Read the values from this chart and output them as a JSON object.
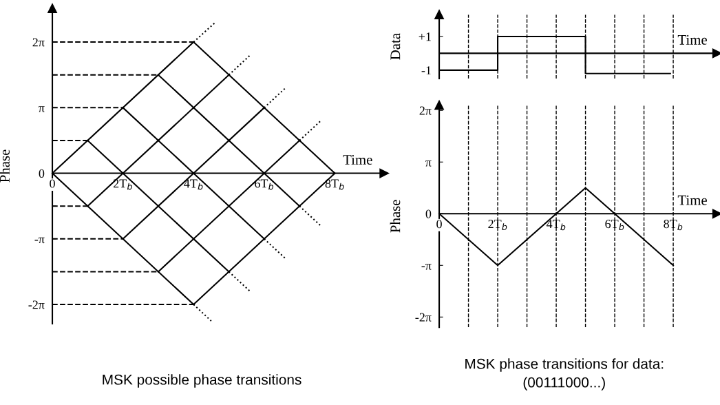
{
  "chart_data": [
    {
      "type": "line",
      "title": "MSK possible phase transitions",
      "xlabel": "Time",
      "ylabel": "Phase",
      "xlim": [
        0,
        9.4
      ],
      "ylim": [
        -7.2,
        7.9
      ],
      "xticks": [
        0,
        {
          "value": 2,
          "label": "2T$_{b}$"
        },
        {
          "value": 4,
          "label": "4T$_{b}$"
        },
        {
          "value": 6,
          "label": "6T$_{b}$"
        },
        {
          "value": 8,
          "label": "8T$_{b}$"
        }
      ],
      "yticks": [
        {
          "value": -6.28,
          "label": "-2π"
        },
        {
          "value": -4.71,
          "label": null
        },
        {
          "value": -3.14,
          "label": "-π"
        },
        {
          "value": -1.57,
          "label": null
        },
        0,
        {
          "value": 1.57,
          "label": null
        },
        {
          "value": 3.14,
          "label": "π"
        },
        {
          "value": 4.71,
          "label": null
        },
        {
          "value": 6.28,
          "label": "2π"
        }
      ],
      "grid": false,
      "legend": false,
      "marker": "none",
      "series": [
        {
          "color": "#000000",
          "line_style": "solid",
          "x": [
            0,
            4,
            8
          ],
          "values": [
            0,
            6.28,
            0
          ]
        },
        {
          "color": "#000000",
          "line_style": "solid",
          "x": [
            0,
            4,
            8
          ],
          "values": [
            0,
            -6.28,
            0
          ]
        },
        {
          "color": "#000000",
          "line_style": "solid",
          "x": [
            1,
            5
          ],
          "values": [
            -1.57,
            4.71
          ]
        },
        {
          "color": "#000000",
          "line_style": "solid",
          "x": [
            2,
            6
          ],
          "values": [
            -3.14,
            3.14
          ]
        },
        {
          "color": "#000000",
          "line_style": "solid",
          "x": [
            3,
            7
          ],
          "values": [
            -4.71,
            1.57
          ]
        },
        {
          "color": "#000000",
          "line_style": "solid",
          "x": [
            1,
            5
          ],
          "values": [
            1.57,
            -4.71
          ]
        },
        {
          "color": "#000000",
          "line_style": "solid",
          "x": [
            2,
            6
          ],
          "values": [
            3.14,
            -3.14
          ]
        },
        {
          "color": "#000000",
          "line_style": "solid",
          "x": [
            3,
            7
          ],
          "values": [
            4.71,
            -1.57
          ]
        },
        {
          "color": "#000000",
          "line_style": "dotted",
          "x": [
            4,
            4.6
          ],
          "values": [
            6.28,
            7.2
          ]
        },
        {
          "color": "#000000",
          "line_style": "dotted",
          "x": [
            5,
            5.6
          ],
          "values": [
            4.71,
            5.65
          ]
        },
        {
          "color": "#000000",
          "line_style": "dotted",
          "x": [
            6,
            6.6
          ],
          "values": [
            3.14,
            4.08
          ]
        },
        {
          "color": "#000000",
          "line_style": "dotted",
          "x": [
            7,
            7.6
          ],
          "values": [
            1.57,
            2.51
          ]
        },
        {
          "color": "#000000",
          "line_style": "dotted",
          "x": [
            4,
            4.5
          ],
          "values": [
            -6.28,
            -7.07
          ]
        },
        {
          "color": "#000000",
          "line_style": "dotted",
          "x": [
            5,
            5.6
          ],
          "values": [
            -4.71,
            -5.65
          ]
        },
        {
          "color": "#000000",
          "line_style": "dotted",
          "x": [
            6,
            6.6
          ],
          "values": [
            -3.14,
            -4.08
          ]
        },
        {
          "color": "#000000",
          "line_style": "dotted",
          "x": [
            7,
            7.6
          ],
          "values": [
            -1.57,
            -2.51
          ]
        },
        {
          "color": "#000000",
          "line_style": "dashed",
          "x": [
            0,
            1
          ],
          "values": [
            1.57,
            1.57
          ]
        },
        {
          "color": "#000000",
          "line_style": "dashed",
          "x": [
            0,
            2
          ],
          "values": [
            3.14,
            3.14
          ]
        },
        {
          "color": "#000000",
          "line_style": "dashed",
          "x": [
            0,
            3
          ],
          "values": [
            4.71,
            4.71
          ]
        },
        {
          "color": "#000000",
          "line_style": "dashed",
          "x": [
            0,
            4
          ],
          "values": [
            6.28,
            6.28
          ]
        },
        {
          "color": "#000000",
          "line_style": "dashed",
          "x": [
            0,
            1
          ],
          "values": [
            -1.57,
            -1.57
          ]
        },
        {
          "color": "#000000",
          "line_style": "dashed",
          "x": [
            0,
            2
          ],
          "values": [
            -3.14,
            -3.14
          ]
        },
        {
          "color": "#000000",
          "line_style": "dashed",
          "x": [
            0,
            3
          ],
          "values": [
            -4.71,
            -4.71
          ]
        },
        {
          "color": "#000000",
          "line_style": "dashed",
          "x": [
            0,
            4
          ],
          "values": [
            -6.28,
            -6.28
          ]
        }
      ]
    },
    {
      "type": "step",
      "xlabel": "Time",
      "ylabel": "Data",
      "xlim": [
        0,
        9.5
      ],
      "ylim": [
        -1.5,
        2.3
      ],
      "yticks": [
        {
          "value": -1,
          "label": "-1"
        },
        {
          "value": 1,
          "label": "+1"
        }
      ],
      "tick_labels": "y",
      "grid": false,
      "legend": false,
      "marker": "none",
      "ref_lines": [
        {
          "axis": "x",
          "value": 1,
          "line_style": "dashed"
        },
        {
          "axis": "x",
          "value": 2,
          "line_style": "dashed"
        },
        {
          "axis": "x",
          "value": 3,
          "line_style": "dashed"
        },
        {
          "axis": "x",
          "value": 4,
          "line_style": "dashed"
        },
        {
          "axis": "x",
          "value": 5,
          "line_style": "dashed"
        },
        {
          "axis": "x",
          "value": 6,
          "line_style": "dashed"
        },
        {
          "axis": "x",
          "value": 7,
          "line_style": "dashed"
        },
        {
          "axis": "x",
          "value": 8,
          "line_style": "dashed"
        }
      ],
      "series": [
        {
          "color": "#000000",
          "line_style": "solid",
          "x": [
            0,
            2,
            5,
            7.9
          ],
          "values": [
            -1,
            1,
            -1.2,
            -1.2
          ]
        }
      ]
    },
    {
      "type": "line",
      "title": "MSK phase transitions for data:\n(00111000...)",
      "xlabel": "Time",
      "ylabel": "Phase",
      "xlim": [
        0,
        9.5
      ],
      "ylim": [
        -6.9,
        6.6
      ],
      "xticks": [
        0,
        {
          "value": 2,
          "label": "2T$_{b}$"
        },
        {
          "value": 4,
          "label": "4T$_{b}$"
        },
        {
          "value": 6,
          "label": "6T$_{b}$"
        },
        {
          "value": 8,
          "label": "8T$_{b}$"
        }
      ],
      "yticks": [
        {
          "value": -6.28,
          "label": "-2π"
        },
        {
          "value": -3.14,
          "label": "-π"
        },
        0,
        {
          "value": 3.14,
          "label": "π"
        },
        {
          "value": 6.28,
          "label": "2π"
        }
      ],
      "grid": false,
      "legend": false,
      "marker": "none",
      "ref_lines": [
        {
          "axis": "x",
          "value": 1,
          "line_style": "dashed"
        },
        {
          "axis": "x",
          "value": 2,
          "line_style": "dashed"
        },
        {
          "axis": "x",
          "value": 3,
          "line_style": "dashed"
        },
        {
          "axis": "x",
          "value": 4,
          "line_style": "dashed"
        },
        {
          "axis": "x",
          "value": 5,
          "line_style": "dashed"
        },
        {
          "axis": "x",
          "value": 6,
          "line_style": "dashed"
        },
        {
          "axis": "x",
          "value": 7,
          "line_style": "dashed"
        },
        {
          "axis": "x",
          "value": 8,
          "line_style": "dashed"
        }
      ],
      "series": [
        {
          "color": "#000000",
          "line_style": "solid",
          "x": [
            0,
            2,
            5,
            8
          ],
          "values": [
            0,
            -3.14,
            1.57,
            -3.14
          ]
        }
      ]
    }
  ]
}
